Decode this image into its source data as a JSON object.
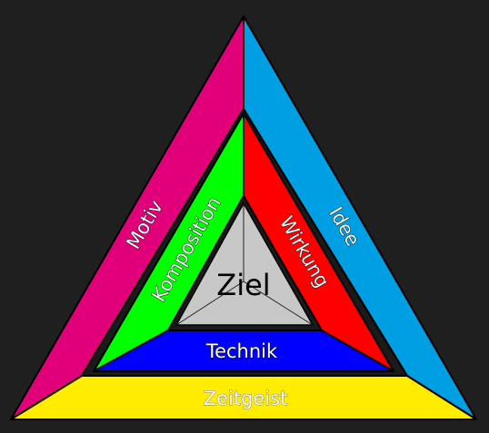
{
  "background_color": "#1f1f1f",
  "outer_ring": {
    "left": {
      "label": "Motiv",
      "color": "#e2007a"
    },
    "right": {
      "label": "Idee",
      "color": "#009fe3"
    },
    "bottom": {
      "label": "Zeitgeist",
      "color": "#ffec00"
    }
  },
  "inner_ring": {
    "left": {
      "label": "Komposition",
      "color": "#00ff00"
    },
    "right": {
      "label": "Wirkung",
      "color": "#ff0000"
    },
    "bottom": {
      "label": "Technik",
      "color": "#0000ff"
    }
  },
  "center": {
    "label": "Ziel",
    "color": "#c8c8c8"
  }
}
